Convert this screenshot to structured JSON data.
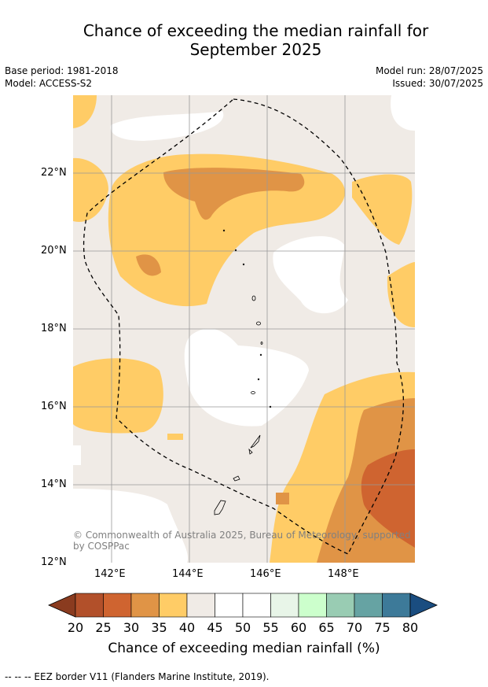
{
  "title_line1": "Chance of exceeding the median rainfall for",
  "title_line2": "September 2025",
  "meta": {
    "base_period": "Base period: 1981-2018",
    "model": "Model: ACCESS-S2",
    "model_run": "Model run: 28/07/2025",
    "issued": "Issued: 30/07/2025"
  },
  "map": {
    "x_ticks": [
      "142°E",
      "144°E",
      "146°E",
      "148°E"
    ],
    "y_ticks": [
      "22°N",
      "20°N",
      "18°N",
      "16°N",
      "14°N",
      "12°N"
    ],
    "lon_range": [
      141,
      149.8
    ],
    "lat_range": [
      12,
      24
    ],
    "copyright": "© Commonwealth of Australia 2025, Bureau of Meteorology, supported by COSPPac"
  },
  "colorbar": {
    "ticks": [
      "20",
      "25",
      "30",
      "35",
      "40",
      "45",
      "50",
      "55",
      "60",
      "65",
      "70",
      "75",
      "80"
    ],
    "colors": [
      "#b2502a",
      "#cf6430",
      "#e09446",
      "#ffcc66",
      "#f0ebe6",
      "#ffffff",
      "#ffffff",
      "#e8f5e8",
      "#ccffcc",
      "#99ccb3",
      "#66a3a3",
      "#3d7a99"
    ],
    "under_color": "#8a3b1f",
    "over_color": "#1a4d80",
    "label": "Chance of exceeding median rainfall (%)"
  },
  "footer": "-- -- -- EEZ border V11 (Flanders Marine Institute, 2019)."
}
